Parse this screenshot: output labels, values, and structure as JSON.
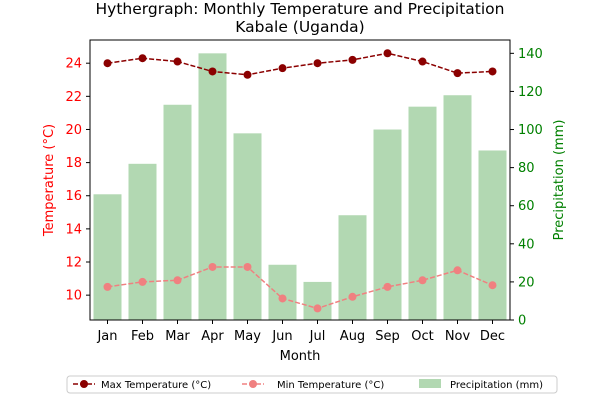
{
  "chart_data": {
    "type": "bar",
    "title": "Hythergraph: Monthly Temperature and Precipitation",
    "subtitle": "Kabale (Uganda)",
    "xlabel": "Month",
    "ylabel_left": "Temperature (°C)",
    "ylabel_right": "Precipitation (mm)",
    "categories": [
      "Jan",
      "Feb",
      "Mar",
      "Apr",
      "May",
      "Jun",
      "Jul",
      "Aug",
      "Sep",
      "Oct",
      "Nov",
      "Dec"
    ],
    "ylim_left": [
      8.5,
      25.4
    ],
    "ylim_right": [
      0,
      147
    ],
    "yticks_left": [
      10,
      12,
      14,
      16,
      18,
      20,
      22,
      24
    ],
    "yticks_right": [
      0,
      20,
      40,
      60,
      80,
      100,
      120,
      140
    ],
    "series": [
      {
        "name": "Max Temperature (°C)",
        "type": "line",
        "axis": "left",
        "style": "dashed",
        "marker": "circle",
        "color": "#8b0000",
        "values": [
          24.0,
          24.3,
          24.1,
          23.5,
          23.3,
          23.7,
          24.0,
          24.2,
          24.6,
          24.1,
          23.4,
          23.5
        ]
      },
      {
        "name": "Min Temperature (°C)",
        "type": "line",
        "axis": "left",
        "style": "dashed",
        "marker": "circle",
        "color": "#f08080",
        "values": [
          10.5,
          10.8,
          10.9,
          11.7,
          11.7,
          9.8,
          9.2,
          9.9,
          10.5,
          10.9,
          11.5,
          10.6
        ]
      },
      {
        "name": "Precipitation (mm)",
        "type": "bar",
        "axis": "right",
        "color": "#b2d8b2",
        "values": [
          66,
          82,
          113,
          140,
          98,
          29,
          20,
          55,
          100,
          112,
          118,
          89
        ]
      }
    ],
    "left_axis_color": "#ff0000",
    "right_axis_color": "#008000",
    "grid": false,
    "legend_position": "bottom"
  }
}
